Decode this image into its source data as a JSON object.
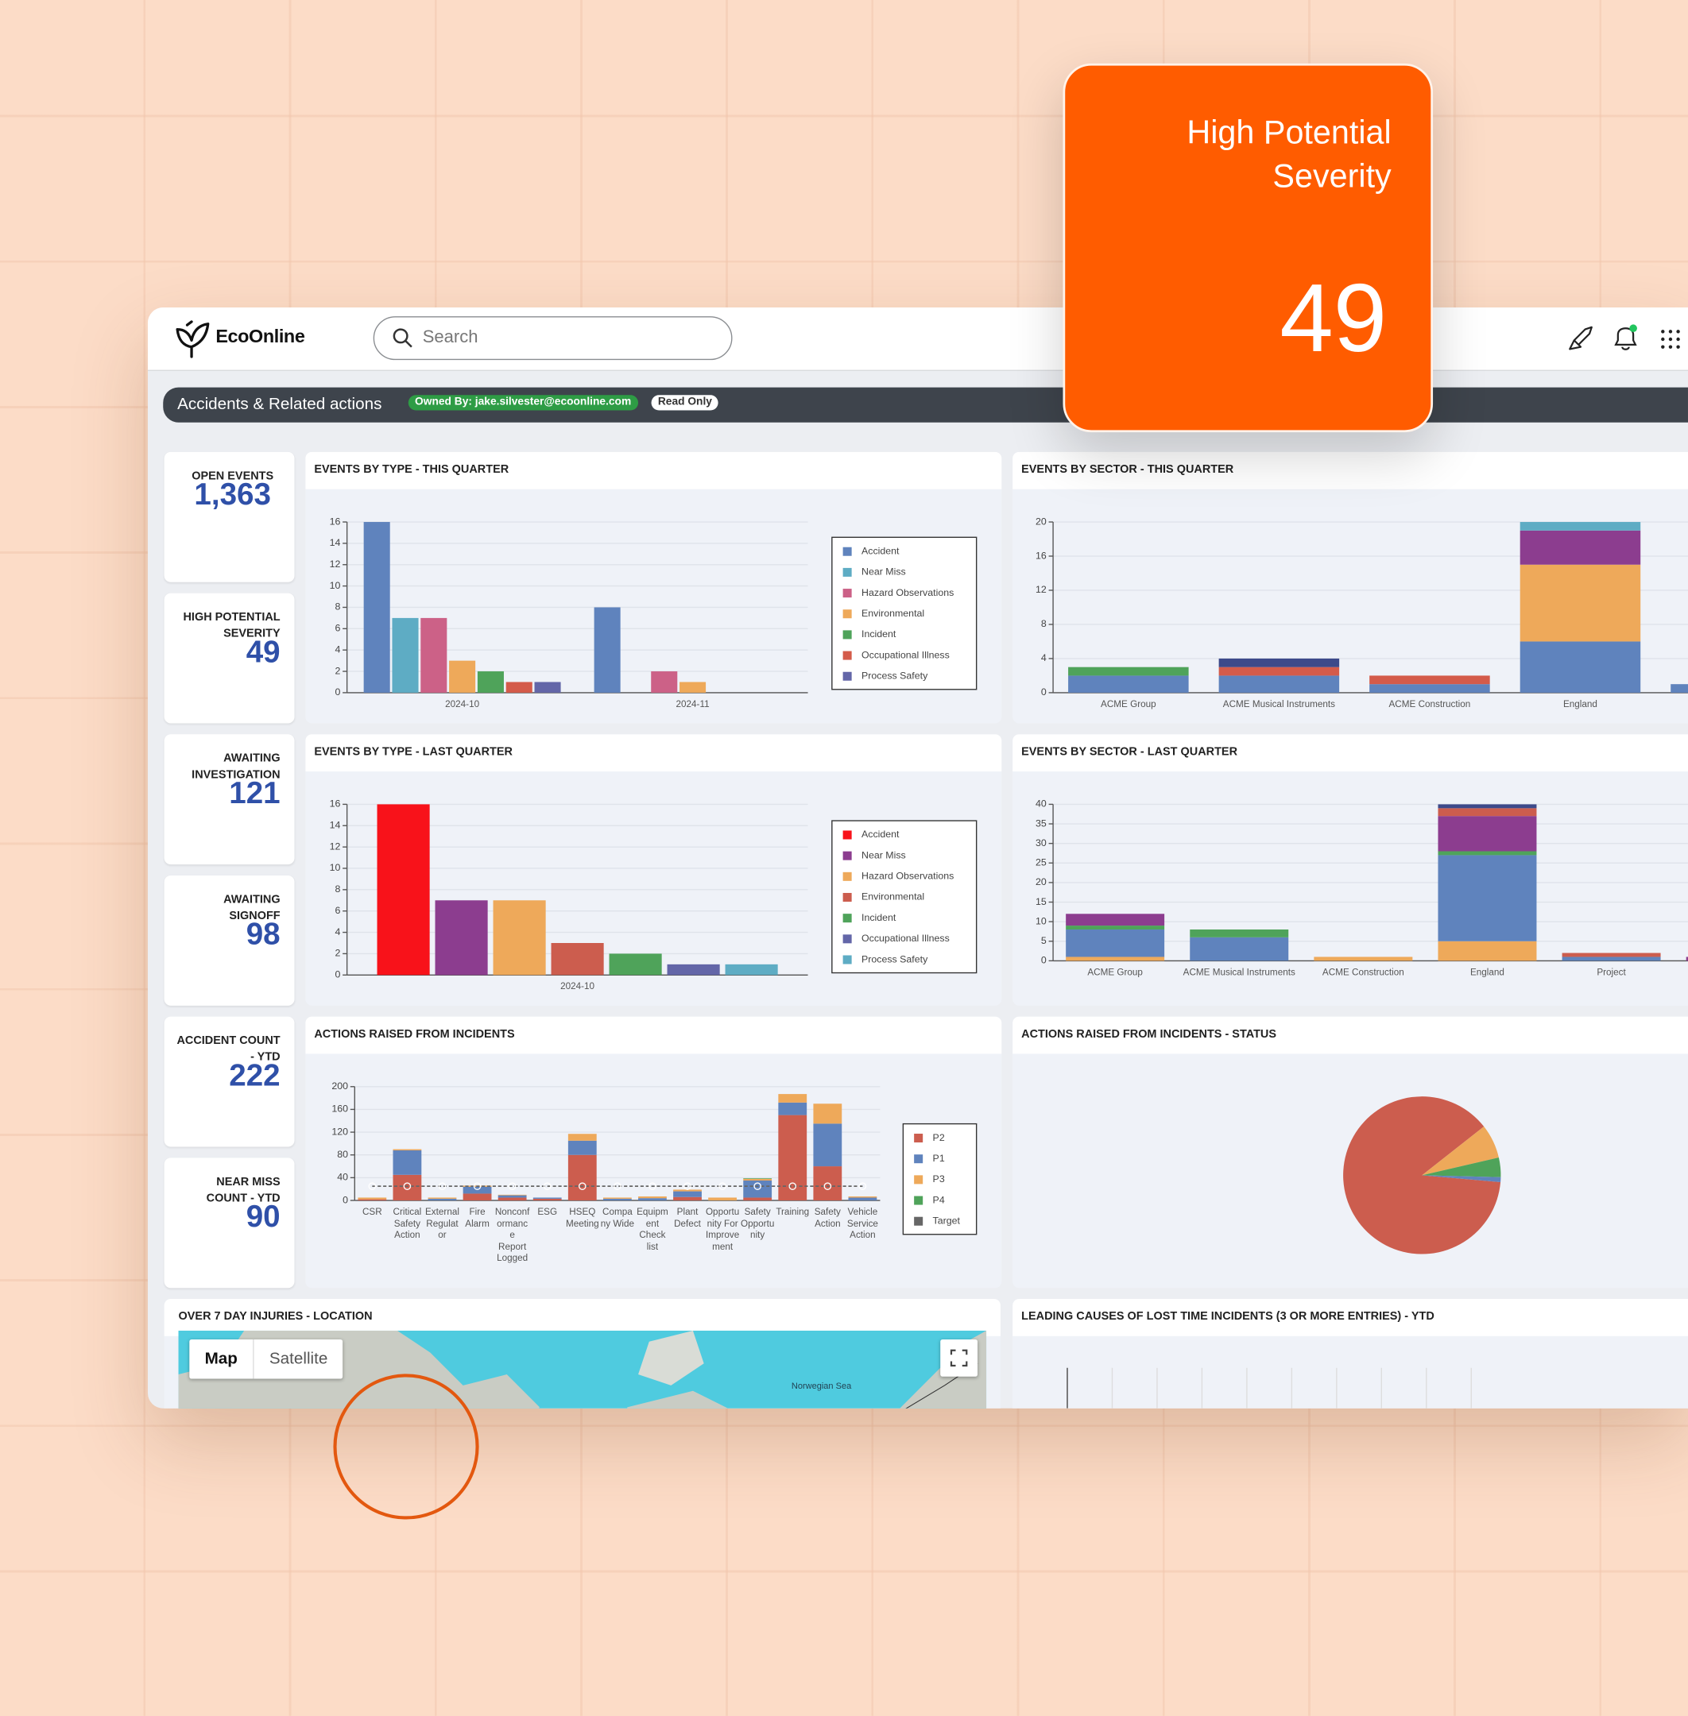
{
  "header": {
    "brand": "EcoOnline",
    "search_placeholder": "Search"
  },
  "toolbar": {
    "title": "Accidents & Related actions",
    "owner": "Owned By: jake.silvester@ecoonline.com",
    "mode": "Read Only"
  },
  "callout": {
    "title": "High Potential Severity",
    "value": 49
  },
  "kpis": [
    {
      "label": "OPEN EVENTS",
      "value": "1,363"
    },
    {
      "label": "HIGH POTENTIAL SEVERITY",
      "value": 49
    },
    {
      "label": "AWAITING INVESTIGATION",
      "value": 121
    },
    {
      "label": "AWAITING SIGNOFF",
      "value": 98
    },
    {
      "label": "ACCIDENT COUNT - YTD",
      "value": 222
    },
    {
      "label": "NEAR MISS COUNT - YTD",
      "value": 90
    }
  ],
  "chart_data": [
    {
      "type": "bar",
      "title": "EVENTS BY TYPE - THIS QUARTER",
      "categories": [
        "2024-10",
        "2024-11"
      ],
      "series": [
        {
          "name": "Accident",
          "color": "#5f83bd",
          "values": [
            16,
            8
          ]
        },
        {
          "name": "Near Miss",
          "color": "#5eacc4",
          "values": [
            7,
            0
          ]
        },
        {
          "name": "Hazard Observations",
          "color": "#cc6187",
          "values": [
            7,
            2
          ]
        },
        {
          "name": "Environmental",
          "color": "#eea95a",
          "values": [
            3,
            1
          ]
        },
        {
          "name": "Incident",
          "color": "#4fa35a",
          "values": [
            2,
            0
          ]
        },
        {
          "name": "Occupational Illness",
          "color": "#d45b4a",
          "values": [
            1,
            0
          ]
        },
        {
          "name": "Process Safety",
          "color": "#6366a8",
          "values": [
            1,
            0
          ]
        }
      ],
      "ylim": [
        0,
        16
      ],
      "yticks": [
        0,
        2,
        4,
        6,
        8,
        10,
        12,
        14,
        16
      ],
      "grid": true,
      "legend": "right"
    },
    {
      "type": "stacked_bar",
      "title": "EVENTS BY SECTOR - THIS QUARTER",
      "categories": [
        "ACME Group",
        "ACME Musical Instruments",
        "ACME Construction",
        "England",
        null
      ],
      "series": [
        {
          "color": "#5f83bd",
          "values": [
            2,
            2,
            1,
            6,
            1
          ]
        },
        {
          "color": "#4fa35a",
          "values": [
            1,
            0,
            0,
            0,
            0
          ]
        },
        {
          "color": "#d45b4a",
          "values": [
            0,
            1,
            1,
            0,
            0
          ]
        },
        {
          "color": "#eea95a",
          "values": [
            0,
            0,
            0,
            9,
            0
          ]
        },
        {
          "color": "#8c3d8f",
          "values": [
            0,
            0,
            0,
            4,
            0
          ]
        },
        {
          "color": "#3d4a8a",
          "values": [
            0,
            1,
            0,
            0,
            0
          ]
        },
        {
          "color": "#5eacc4",
          "values": [
            0,
            0,
            0,
            1,
            0
          ]
        }
      ],
      "ylim": [
        0,
        20
      ],
      "yticks": [
        0,
        4,
        8,
        12,
        16,
        20
      ],
      "grid": true
    },
    {
      "type": "bar",
      "title": "EVENTS BY TYPE - LAST QUARTER",
      "categories": [
        "2024-10"
      ],
      "series": [
        {
          "name": "Accident",
          "color": "#f8121a",
          "values": [
            16
          ]
        },
        {
          "name": "Near Miss",
          "color": "#8c3d8f",
          "values": [
            7
          ]
        },
        {
          "name": "Hazard Observations",
          "color": "#eea95a",
          "values": [
            7
          ]
        },
        {
          "name": "Environmental",
          "color": "#cc5d4e",
          "values": [
            3
          ]
        },
        {
          "name": "Incident",
          "color": "#4fa35a",
          "values": [
            2
          ]
        },
        {
          "name": "Occupational Illness",
          "color": "#6366a8",
          "values": [
            1
          ]
        },
        {
          "name": "Process Safety",
          "color": "#5eacc4",
          "values": [
            1
          ]
        }
      ],
      "ylim": [
        0,
        16
      ],
      "yticks": [
        0,
        2,
        4,
        6,
        8,
        10,
        12,
        14,
        16
      ],
      "grid": true,
      "legend": "right"
    },
    {
      "type": "stacked_bar",
      "title": "EVENTS BY SECTOR - LAST QUARTER",
      "categories": [
        "ACME Group",
        "ACME Musical Instruments",
        "ACME Construction",
        "England",
        "Project",
        null
      ],
      "series": [
        {
          "color": "#eea95a",
          "values": [
            1,
            0,
            1,
            5,
            0,
            0
          ]
        },
        {
          "color": "#5f83bd",
          "values": [
            7,
            6,
            0,
            22,
            1,
            0
          ]
        },
        {
          "color": "#4fa35a",
          "values": [
            1,
            2,
            0,
            1,
            0,
            0
          ]
        },
        {
          "color": "#8c3d8f",
          "values": [
            3,
            0,
            0,
            9,
            0,
            1
          ]
        },
        {
          "color": "#cc5d4e",
          "values": [
            0,
            0,
            0,
            2,
            1,
            0
          ]
        },
        {
          "color": "#3d4a8a",
          "values": [
            0,
            0,
            0,
            1,
            0,
            0
          ]
        }
      ],
      "ylim": [
        0,
        40
      ],
      "yticks": [
        0,
        5,
        10,
        15,
        20,
        25,
        30,
        35,
        40
      ],
      "grid": true
    },
    {
      "type": "stacked_bar",
      "title": "ACTIONS RAISED FROM INCIDENTS",
      "categories": [
        "CSR",
        "Critical Safety Action",
        "External Regulator",
        "Fire Alarm",
        "Nonconformance Report Logged",
        "ESG",
        "HSEQ Meeting",
        "Company Wide",
        "Equipment Check list",
        "Plant Defect",
        "Opportunity For Improvement",
        "Safety Opportunity",
        "Training",
        "Safety Action",
        "Vehicle Service Action"
      ],
      "series": [
        {
          "name": "P2",
          "color": "#cc5d4e",
          "values": [
            2,
            45,
            0,
            12,
            5,
            3,
            80,
            0,
            0,
            6,
            0,
            5,
            150,
            60,
            0
          ]
        },
        {
          "name": "P1",
          "color": "#5f83bd",
          "values": [
            0,
            43,
            3,
            12,
            4,
            2,
            25,
            3,
            4,
            10,
            0,
            30,
            22,
            75,
            5
          ]
        },
        {
          "name": "P3",
          "color": "#eea95a",
          "values": [
            3,
            2,
            2,
            2,
            1,
            0,
            12,
            2,
            3,
            3,
            5,
            3,
            15,
            35,
            2
          ]
        },
        {
          "name": "P4",
          "color": "#4fa35a",
          "values": [
            0,
            0,
            0,
            0,
            0,
            0,
            0,
            0,
            0,
            0,
            0,
            1,
            0,
            0,
            0
          ]
        },
        {
          "name": "Target",
          "color": "#666666",
          "type": "line",
          "values": [
            25,
            25,
            25,
            25,
            25,
            25,
            25,
            25,
            25,
            25,
            25,
            25,
            25,
            25,
            25
          ]
        }
      ],
      "ylim": [
        0,
        200
      ],
      "yticks": [
        0,
        40,
        80,
        120,
        160,
        200
      ],
      "grid": true,
      "legend": "right"
    },
    {
      "type": "pie",
      "title": "ACTIONS RAISED FROM INCIDENTS - STATUS",
      "values": [
        88,
        7,
        4,
        1
      ],
      "colors": [
        "#cc5d4e",
        "#eea95a",
        "#4fa35a",
        "#5f83bd"
      ]
    },
    {
      "type": "bar",
      "title": "LEADING CAUSES OF LOST TIME INCIDENTS (3 OR MORE ENTRIES) - YTD"
    }
  ],
  "map": {
    "title": "OVER 7 DAY INJURIES - LOCATION",
    "tabs": [
      "Map",
      "Satellite"
    ],
    "label": "Norwegian Sea"
  }
}
